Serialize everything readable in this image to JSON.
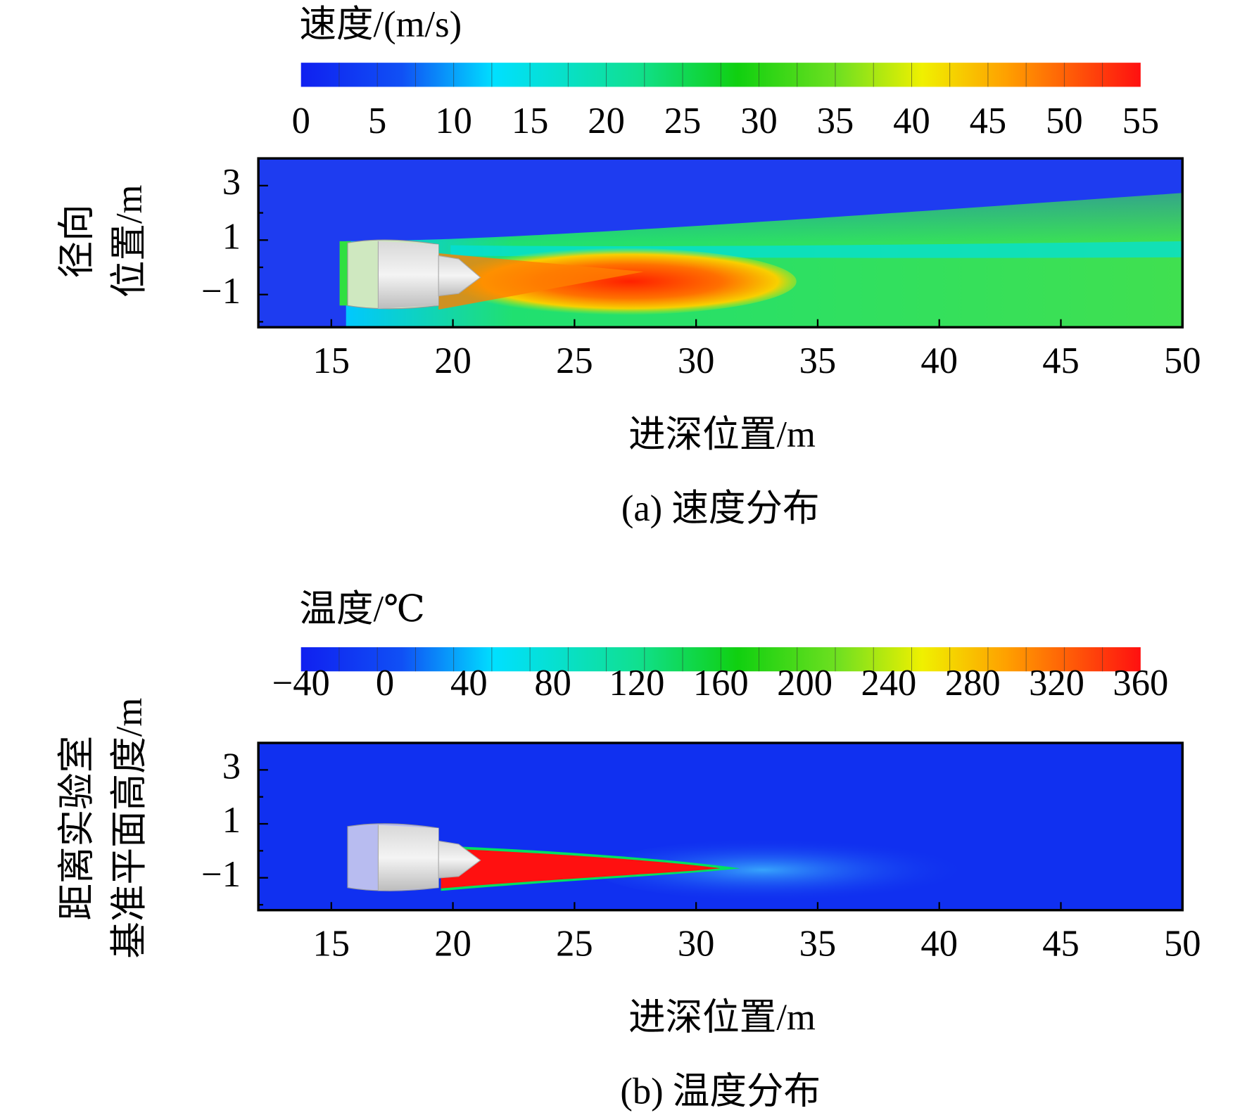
{
  "chart_data": [
    {
      "type": "contour",
      "colorbar_label": "速度/(m/s)",
      "colorbar_lim": [
        0,
        55
      ],
      "colorbar_ticks": [
        0,
        5,
        10,
        15,
        20,
        25,
        30,
        35,
        40,
        45,
        50,
        55
      ],
      "xlim": [
        12,
        50
      ],
      "xticks": [
        15,
        20,
        25,
        30,
        35,
        40,
        45,
        50
      ],
      "ylim": [
        -2.2,
        4
      ],
      "yticks": [
        3,
        1,
        {
          "value": -1,
          "label": "−1"
        }
      ],
      "yminorticks": [
        2,
        0,
        -2
      ],
      "xlabel": "进深位置/m",
      "ylabel": [
        "径向",
        "位置/m"
      ],
      "caption": "(a) 速度分布"
    },
    {
      "type": "contour",
      "colorbar_label": "温度/℃",
      "colorbar_lim": [
        -40,
        360
      ],
      "colorbar_ticks": [
        {
          "value": -40,
          "label": "−40"
        },
        0,
        40,
        80,
        120,
        160,
        200,
        240,
        280,
        320,
        360
      ],
      "xlim": [
        12,
        50
      ],
      "xticks": [
        15,
        20,
        25,
        30,
        35,
        40,
        45,
        50
      ],
      "ylim": [
        -2.2,
        4
      ],
      "yticks": [
        3,
        1,
        {
          "value": -1,
          "label": "−1"
        }
      ],
      "yminorticks": [
        2,
        0,
        -2
      ],
      "xlabel": "进深位置/m",
      "ylabel": [
        "距离实验室",
        "基准平面高度/m"
      ],
      "caption": "(b) 温度分布"
    }
  ]
}
